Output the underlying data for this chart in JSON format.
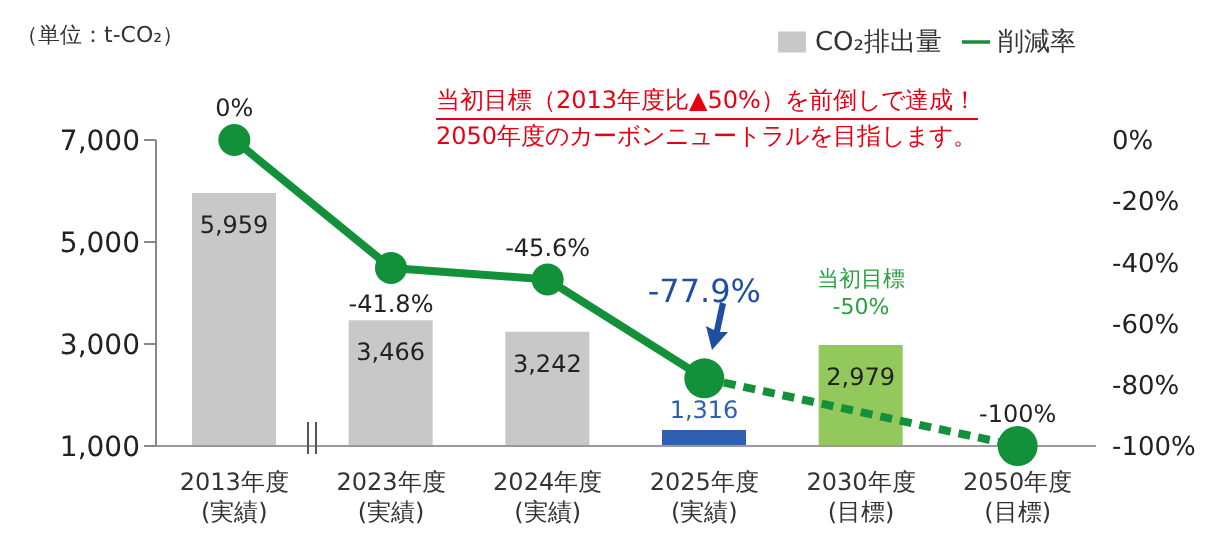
{
  "chart_data": {
    "type": "bar",
    "ylabel": "（単位：t-CO₂）",
    "categories": [
      "2013年度\n(実績)",
      "2023年度\n(実績)",
      "2024年度\n(実績)",
      "2025年度\n(実績)",
      "2030年度\n(目標)",
      "2050年度\n(目標)"
    ],
    "series": [
      {
        "name": "CO₂排出量",
        "colors": [
          "#c8c8c8",
          "#c8c8c8",
          "#c8c8c8",
          "#2f5fb0",
          "#92c85c",
          null
        ],
        "values": [
          5959,
          3466,
          3242,
          1316,
          2979,
          null
        ],
        "value_labels": [
          "5,959",
          "3,466",
          "3,242",
          "1,316",
          "2,979",
          null
        ]
      },
      {
        "name": "削減率",
        "type": "line",
        "axis": "y2",
        "color": "#13903a",
        "marker": "circle",
        "line_style": "solid",
        "values": [
          0,
          -41.8,
          -45.6,
          -77.9,
          null,
          null
        ],
        "value_labels": [
          "0%",
          "-41.8%",
          "-45.6%",
          "-77.9%",
          null,
          null
        ]
      },
      {
        "type": "line",
        "axis": "y2",
        "color": "#13903a",
        "marker": "circle",
        "line_style": "dashed",
        "values": [
          null,
          null,
          null,
          -77.9,
          null,
          -100
        ],
        "value_labels": [
          null,
          null,
          null,
          null,
          null,
          "-100%"
        ]
      }
    ],
    "ylim": [
      1000,
      7000
    ],
    "yticks": [
      {
        "value": 1000,
        "label": "1,000"
      },
      {
        "value": 3000,
        "label": "3,000"
      },
      {
        "value": 5000,
        "label": "5,000"
      },
      {
        "value": 7000,
        "label": "7,000"
      }
    ],
    "y2lim": [
      -100,
      0
    ],
    "y2ticks": [
      {
        "value": 0,
        "label": "0%"
      },
      {
        "value": -20,
        "label": "-20%"
      },
      {
        "value": -40,
        "label": "-40%"
      },
      {
        "value": -60,
        "label": "-60%"
      },
      {
        "value": -80,
        "label": "-80%"
      },
      {
        "value": -100,
        "label": "-100%"
      }
    ],
    "annotations": [
      "当初目標（2013年度比▲50%）を前倒しで達成！\n2050年度のカーボンニュートラルを目指します。",
      "当初目標\n-50%"
    ],
    "legend": "top right"
  }
}
